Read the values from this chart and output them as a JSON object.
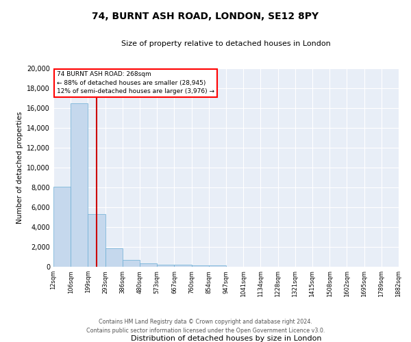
{
  "title1": "74, BURNT ASH ROAD, LONDON, SE12 8PY",
  "title2": "Size of property relative to detached houses in London",
  "xlabel": "Distribution of detached houses by size in London",
  "ylabel": "Number of detached properties",
  "footer1": "Contains HM Land Registry data © Crown copyright and database right 2024.",
  "footer2": "Contains public sector information licensed under the Open Government Licence v3.0.",
  "annotation_title": "74 BURNT ASH ROAD: 268sqm",
  "annotation_line2": "← 88% of detached houses are smaller (28,945)",
  "annotation_line3": "12% of semi-detached houses are larger (3,976) →",
  "bar_color": "#c5d8ed",
  "bar_edge_color": "#6aadd5",
  "vline_color": "#cc0000",
  "vline_x": 2.5,
  "ylim": [
    0,
    20000
  ],
  "yticks": [
    0,
    2000,
    4000,
    6000,
    8000,
    10000,
    12000,
    14000,
    16000,
    18000,
    20000
  ],
  "bins": [
    "12sqm",
    "106sqm",
    "199sqm",
    "293sqm",
    "386sqm",
    "480sqm",
    "573sqm",
    "667sqm",
    "760sqm",
    "854sqm",
    "947sqm",
    "1041sqm",
    "1134sqm",
    "1228sqm",
    "1321sqm",
    "1415sqm",
    "1508sqm",
    "1602sqm",
    "1695sqm",
    "1789sqm",
    "1882sqm"
  ],
  "values": [
    8100,
    16500,
    5300,
    1850,
    720,
    320,
    230,
    200,
    160,
    130,
    0,
    0,
    0,
    0,
    0,
    0,
    0,
    0,
    0,
    0
  ],
  "background_color": "#e8eef7"
}
